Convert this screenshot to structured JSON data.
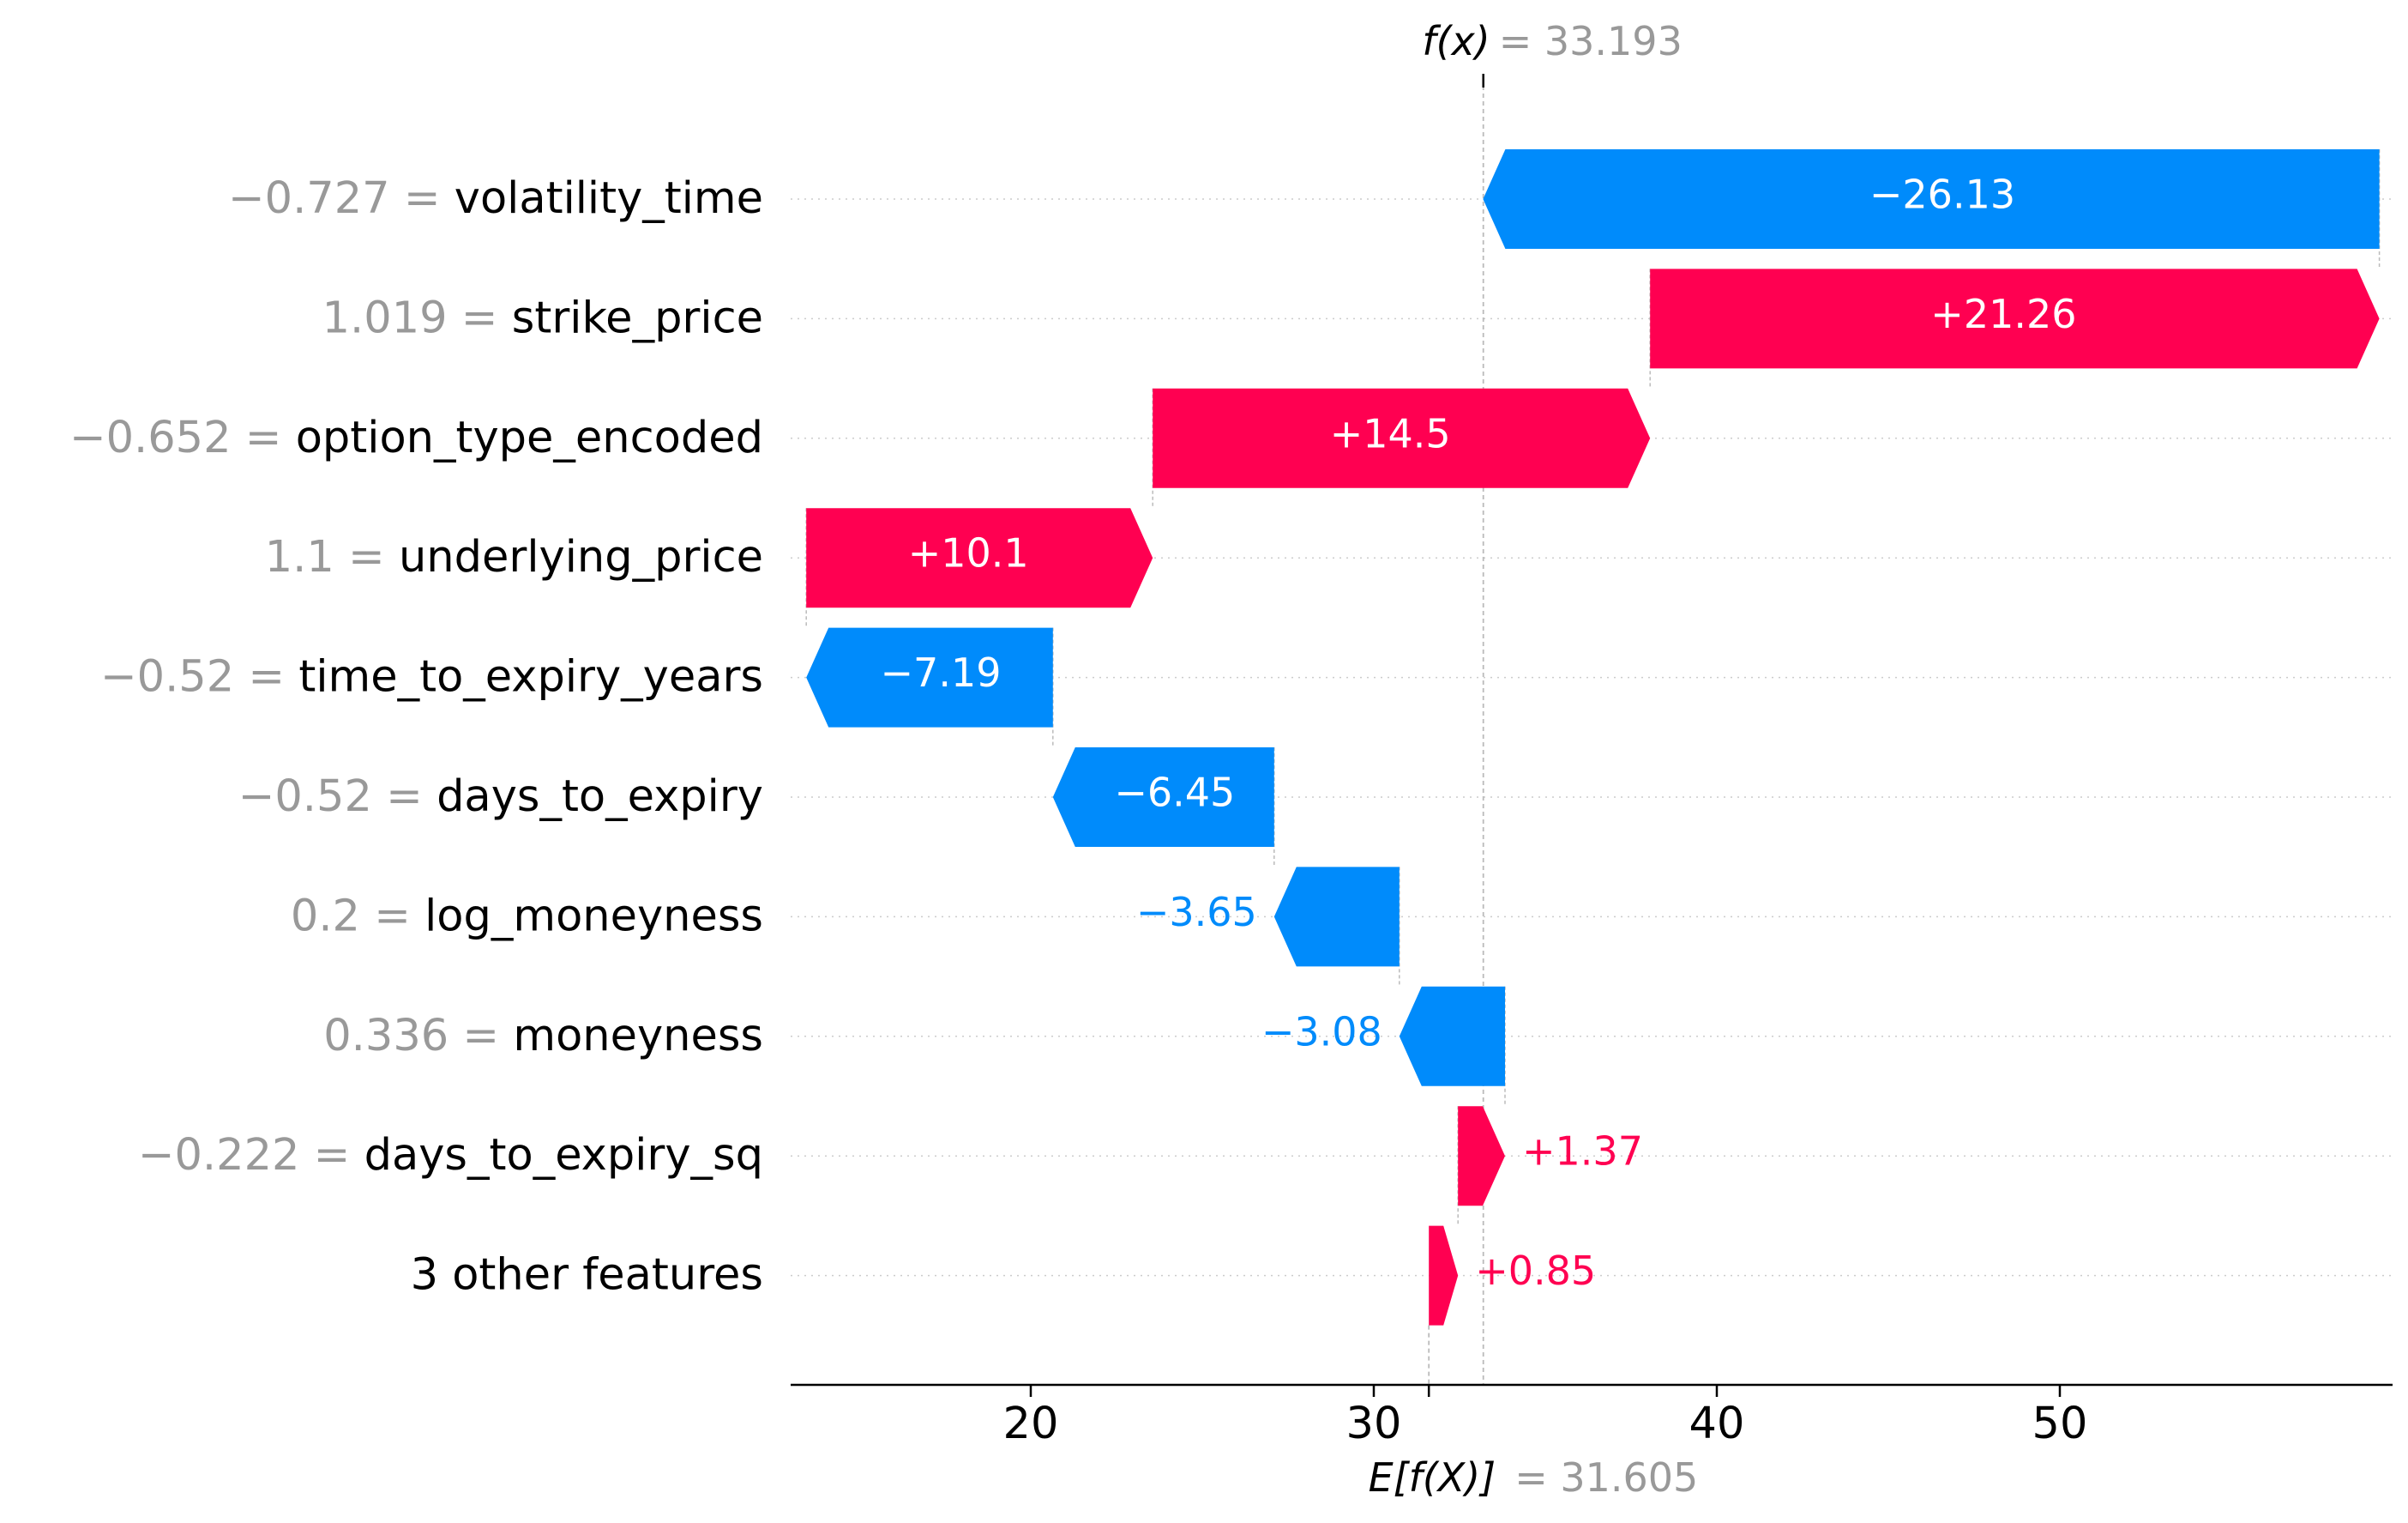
{
  "chart_data": {
    "type": "waterfall",
    "fx_label": "f(x)",
    "fx_value": "33.193",
    "ex_label": "E[f(X)]",
    "ex_value": "31.605",
    "base_value": 31.605,
    "final_value": 33.193,
    "xlim": [
      13.0,
      60.0
    ],
    "xticks": [
      20,
      30,
      40,
      50
    ],
    "features": [
      {
        "feature_value": "−0.727",
        "name": "volatility_time",
        "shap": -26.13,
        "label": "−26.13"
      },
      {
        "feature_value": "1.019",
        "name": "strike_price",
        "shap": 21.26,
        "label": "+21.26"
      },
      {
        "feature_value": "−0.652",
        "name": "option_type_encoded",
        "shap": 14.5,
        "label": "+14.5"
      },
      {
        "feature_value": "1.1",
        "name": "underlying_price",
        "shap": 10.1,
        "label": "+10.1"
      },
      {
        "feature_value": "−0.52",
        "name": "time_to_expiry_years",
        "shap": -7.19,
        "label": "−7.19"
      },
      {
        "feature_value": "−0.52",
        "name": "days_to_expiry",
        "shap": -6.45,
        "label": "−6.45"
      },
      {
        "feature_value": "0.2",
        "name": "log_moneyness",
        "shap": -3.65,
        "label": "−3.65"
      },
      {
        "feature_value": "0.336",
        "name": "moneyness",
        "shap": -3.08,
        "label": "−3.08"
      },
      {
        "feature_value": "−0.222",
        "name": "days_to_expiry_sq",
        "shap": 1.37,
        "label": "+1.37"
      },
      {
        "feature_value": "",
        "name": "3 other features",
        "shap": 0.85,
        "label": "+0.85"
      }
    ],
    "colors": {
      "positive": "#ff0051",
      "negative": "#008bfb",
      "feature_value_text": "#999999",
      "feature_name_text": "#000000",
      "gridline": "#cccccc"
    }
  }
}
